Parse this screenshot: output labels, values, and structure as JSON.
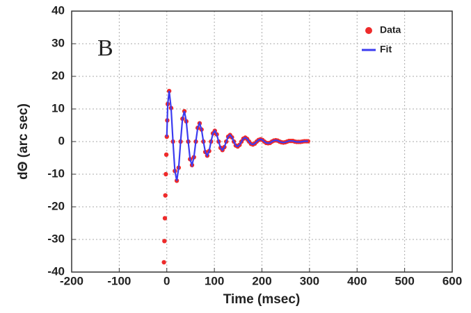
{
  "chart_data": {
    "type": "scatter",
    "annotation": "B",
    "xlabel": "Time (msec)",
    "ylabel": "dΘ (arc sec)",
    "xlim": [
      -200,
      600
    ],
    "xticks": [
      -200,
      -100,
      0,
      100,
      200,
      300,
      400,
      500,
      600
    ],
    "ylim": [
      -40,
      40
    ],
    "yticks": [
      -40,
      -30,
      -20,
      -10,
      0,
      10,
      20,
      30,
      40
    ],
    "grid": true,
    "legend": "upper right",
    "series": [
      {
        "name": "Data",
        "color": "#ee2b2b",
        "mode": "markers",
        "x": [
          -6,
          -5,
          -4,
          -3,
          -2,
          -1,
          0,
          1,
          2,
          5,
          9,
          13,
          17,
          21,
          25,
          29,
          33,
          37,
          41,
          45,
          49,
          53,
          57,
          61,
          65,
          69,
          73,
          77,
          81,
          85,
          89,
          93,
          97,
          101,
          105,
          109,
          113,
          117,
          121,
          125,
          129,
          133,
          137,
          141,
          145,
          149,
          153,
          157,
          161,
          165,
          169,
          173,
          177,
          181,
          185,
          189,
          193,
          197,
          201,
          205,
          209,
          213,
          217,
          221,
          225,
          229,
          233,
          237,
          241,
          245,
          249,
          253,
          257,
          261,
          265,
          269,
          273,
          277,
          281,
          285,
          289,
          293,
          297
        ],
        "values": [
          -37,
          -30.5,
          -23.5,
          -16.5,
          -10,
          -4,
          1.5,
          6.5,
          11.5,
          15.5,
          10.3,
          0,
          -9,
          -12,
          -8,
          0,
          7,
          9.3,
          6.2,
          0,
          -5.4,
          -7.2,
          -4.8,
          0,
          4.2,
          5.6,
          3.7,
          0,
          -3.2,
          -4.3,
          -2.9,
          0,
          2.5,
          3.3,
          2.2,
          0,
          -1.9,
          -2.6,
          -1.7,
          0,
          1.5,
          2,
          1.3,
          0,
          -1.2,
          -1.5,
          -1,
          0,
          0.9,
          1.2,
          0.8,
          0,
          -0.7,
          -0.9,
          -0.6,
          0,
          0.5,
          0.7,
          0.5,
          0,
          -0.4,
          -0.5,
          -0.4,
          0,
          0.3,
          0.4,
          0.3,
          0,
          -0.2,
          -0.3,
          -0.2,
          0,
          0.2,
          0.2,
          0.2,
          0,
          -0.1,
          -0.1,
          -0.1,
          0,
          0.1,
          0.1,
          0.1
        ]
      },
      {
        "name": "Fit",
        "color": "#3b3bf0",
        "mode": "lines",
        "x": [
          0,
          1,
          2,
          5,
          9,
          13,
          17,
          21,
          25,
          29,
          33,
          37,
          41,
          45,
          49,
          53,
          57,
          61,
          65,
          69,
          73,
          77,
          81,
          85,
          89,
          93,
          97,
          101,
          105,
          109,
          113,
          117,
          121,
          125,
          129,
          133,
          137,
          141,
          145,
          149,
          153,
          157,
          161,
          165,
          169,
          173,
          177,
          181,
          185,
          189,
          193,
          197,
          201,
          205,
          209,
          213,
          217,
          221,
          225,
          229,
          233,
          237,
          241,
          245,
          249,
          253,
          257,
          261,
          265,
          269,
          273,
          277,
          281,
          285,
          289,
          293,
          297
        ],
        "values": [
          1.5,
          6.5,
          11.5,
          15.5,
          10.3,
          0,
          -9,
          -12,
          -8,
          0,
          7,
          9.3,
          6.2,
          0,
          -5.4,
          -7.2,
          -4.8,
          0,
          4.2,
          5.6,
          3.7,
          0,
          -3.2,
          -4.3,
          -2.9,
          0,
          2.5,
          3.3,
          2.2,
          0,
          -1.9,
          -2.6,
          -1.7,
          0,
          1.5,
          2,
          1.3,
          0,
          -1.2,
          -1.5,
          -1,
          0,
          0.9,
          1.2,
          0.8,
          0,
          -0.7,
          -0.9,
          -0.6,
          0,
          0.5,
          0.7,
          0.5,
          0,
          -0.4,
          -0.5,
          -0.4,
          0,
          0.3,
          0.4,
          0.3,
          0,
          -0.2,
          -0.3,
          -0.2,
          0,
          0.2,
          0.2,
          0.2,
          0,
          -0.1,
          -0.1,
          -0.1,
          0,
          0.1,
          0.1,
          0.1
        ]
      }
    ]
  }
}
